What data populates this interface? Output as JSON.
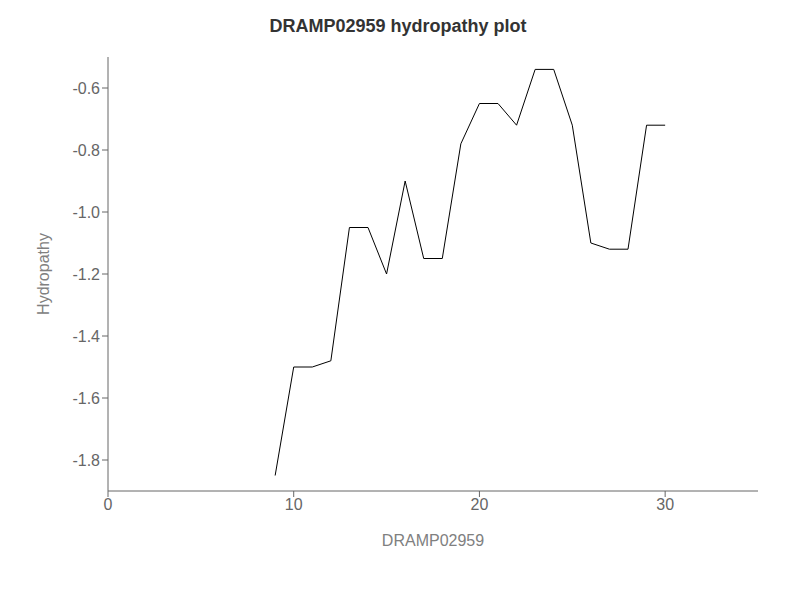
{
  "chart_data": {
    "type": "line",
    "title": "DRAMP02959 hydropathy plot",
    "xlabel": "DRAMP02959",
    "ylabel": "Hydropathy",
    "x": [
      9,
      10,
      11,
      12,
      13,
      14,
      15,
      16,
      17,
      18,
      19,
      20,
      21,
      22,
      23,
      24,
      25,
      26,
      27,
      28,
      29,
      30
    ],
    "values": [
      -1.85,
      -1.5,
      -1.5,
      -1.48,
      -1.05,
      -1.05,
      -1.2,
      -0.9,
      -1.15,
      -1.15,
      -0.78,
      -0.65,
      -0.65,
      -0.72,
      -0.54,
      -0.54,
      -0.72,
      -1.1,
      -1.12,
      -1.12,
      -0.72,
      -0.72
    ],
    "color": "#000000",
    "xlim": [
      0,
      35
    ],
    "ylim": [
      -1.9,
      -0.5
    ],
    "xticks": [
      0,
      10,
      20,
      30
    ],
    "yticks": [
      -1.8,
      -1.6,
      -1.4,
      -1.2,
      {
        "value": -1,
        "label": "-1.0"
      },
      -0.8,
      -0.6
    ],
    "grid": false
  }
}
